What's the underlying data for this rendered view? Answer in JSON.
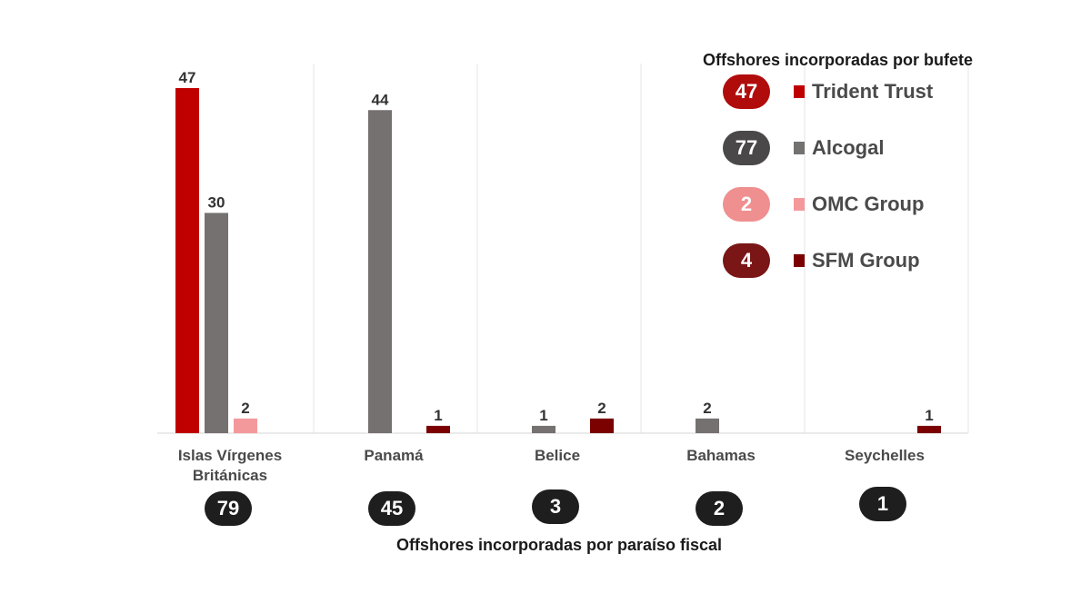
{
  "colors": {
    "trident": "#c00000",
    "alcogal": "#767171",
    "omc": "#f4999b",
    "sfm": "#7b0000",
    "pill_dark": "#1e1e1e",
    "grid": "#e4e4e4"
  },
  "legend": {
    "title": "Offshores  incorporadas por bufete",
    "items": [
      {
        "total": "47",
        "name": "Trident Trust",
        "color": "#c00000",
        "pill_color": "#b10c0c"
      },
      {
        "total": "77",
        "name": "Alcogal",
        "color": "#767171",
        "pill_color": "#4a4848"
      },
      {
        "total": "2",
        "name": "OMC Group",
        "color": "#f4999b",
        "pill_color": "#ef8f90"
      },
      {
        "total": "4",
        "name": "SFM Group",
        "color": "#7b0000",
        "pill_color": "#7a1616"
      }
    ]
  },
  "chart_data": {
    "type": "bar",
    "categories": [
      "Islas Vírgenes Británicas",
      "Panamá",
      "Belice",
      "Bahamas",
      "Seychelles"
    ],
    "category_lines": [
      [
        "Islas Vírgenes",
        "Británicas"
      ],
      [
        "Panamá"
      ],
      [
        "Belice"
      ],
      [
        "Bahamas"
      ],
      [
        "Seychelles"
      ]
    ],
    "series": [
      {
        "name": "Trident Trust",
        "color": "#c00000",
        "values": [
          47,
          null,
          null,
          null,
          null
        ]
      },
      {
        "name": "Alcogal",
        "color": "#767171",
        "values": [
          30,
          44,
          1,
          2,
          null
        ]
      },
      {
        "name": "OMC Group",
        "color": "#f4999b",
        "values": [
          2,
          null,
          null,
          null,
          null
        ]
      },
      {
        "name": "SFM Group",
        "color": "#7b0000",
        "values": [
          null,
          1,
          2,
          null,
          1
        ]
      }
    ],
    "totals": [
      "79",
      "45",
      "3",
      "2",
      "1"
    ],
    "xlabel": "Offshores  incorporadas por paraíso fiscal",
    "ylim": [
      0,
      47
    ],
    "grid": "vertical separators",
    "legend_position": "top-right"
  }
}
